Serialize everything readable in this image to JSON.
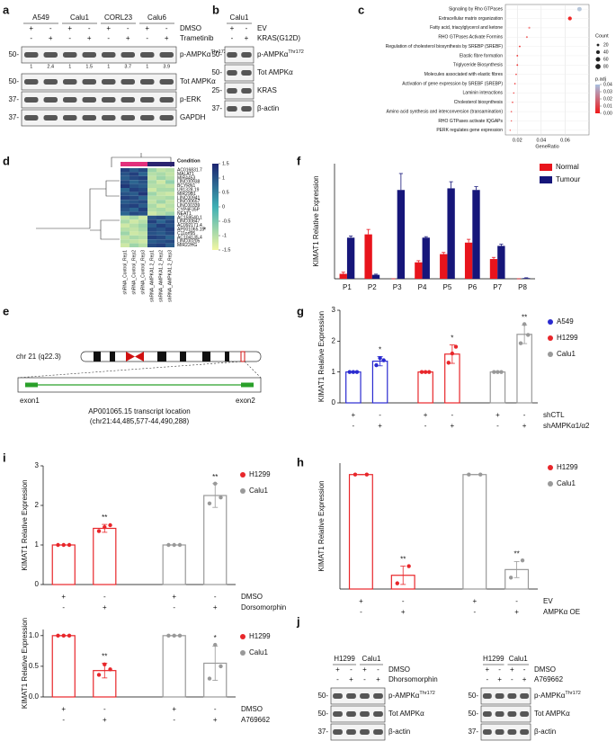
{
  "panel_letters": [
    "a",
    "b",
    "c",
    "d",
    "e",
    "f",
    "g",
    "h",
    "i",
    "j"
  ],
  "blots": {
    "a": {
      "groups": [
        "A549",
        "Calu1",
        "CORL23",
        "Calu6"
      ],
      "treatments": [
        {
          "label": "DMSO",
          "signs": [
            "+",
            "-",
            "+",
            "-",
            "+",
            "-",
            "+",
            "-"
          ]
        },
        {
          "label": "Trametinib",
          "signs": [
            "-",
            "+",
            "-",
            "+",
            "-",
            "+",
            "-",
            "+"
          ]
        }
      ],
      "bands": [
        {
          "label": "p-AMPKα",
          "sup": "Thr172",
          "mw": "50-",
          "quant": [
            1,
            2.4,
            1,
            1.5,
            1,
            3.7,
            1,
            3.9
          ]
        },
        {
          "label": "Tot AMPKα",
          "mw": "50-"
        },
        {
          "label": "p-ERK",
          "mw": "37-"
        },
        {
          "label": "GAPDH",
          "mw": "37-"
        }
      ]
    },
    "b": {
      "groups": [
        "Calu1"
      ],
      "treatments": [
        {
          "label": "EV",
          "signs": [
            "+",
            "-"
          ]
        },
        {
          "label": "KRAS(G12D)",
          "signs": [
            "-",
            "+"
          ]
        }
      ],
      "bands": [
        {
          "label": "p-AMPKα",
          "sup": "Thr172",
          "mw": "50-"
        },
        {
          "label": "Tot AMPKα",
          "mw": "50-"
        },
        {
          "label": "KRAS",
          "mw": "25-"
        },
        {
          "label": "β-actin",
          "mw": "37-"
        }
      ]
    },
    "j_left": {
      "groups": [
        "H1299",
        "Calu1"
      ],
      "treatments": [
        {
          "label": "DMSO",
          "signs": [
            "+",
            "-",
            "+",
            "-"
          ]
        },
        {
          "label": "Dhorsomorphin",
          "signs": [
            "-",
            "+",
            "-",
            "+"
          ]
        }
      ],
      "bands": [
        {
          "label": "p-AMPKα",
          "sup": "Thr172",
          "mw": "50-"
        },
        {
          "label": "Tot AMPKα",
          "mw": "50-"
        },
        {
          "label": "β-actin",
          "mw": "37-"
        }
      ]
    },
    "j_right": {
      "groups": [
        "H1299",
        "Calu1"
      ],
      "treatments": [
        {
          "label": "DMSO",
          "signs": [
            "+",
            "-",
            "+",
            "-"
          ]
        },
        {
          "label": "A769662",
          "signs": [
            "-",
            "+",
            "-",
            "+"
          ]
        }
      ],
      "bands": [
        {
          "label": "p-AMPKα",
          "sup": "Thr172",
          "mw": "50-"
        },
        {
          "label": "Tot AMPKα",
          "mw": "50-"
        },
        {
          "label": "β-actin",
          "mw": "37-"
        }
      ]
    }
  },
  "heatmap": {
    "condition_label": "Condition",
    "condition_colors": [
      "#e2307c",
      "#e2307c",
      "#e2307c",
      "#2b2470",
      "#2b2470",
      "#2b2470"
    ],
    "columns": [
      "shRNA_Control_Rep1",
      "shRNA_Control_Rep2",
      "shRNA_Control_Rep3",
      "shRNA_AMPKA1.2_Rep1",
      "shRNA_AMPKA1.2_Rep2",
      "shRNA_AMPKA1.2_Rep3"
    ],
    "rows": [
      "AC016831.7",
      "MALAT1",
      "MIR4453",
      "LINC00938",
      "BCYRN1",
      "U91328.19",
      "MIR29B1",
      "LINC00941",
      "LINC00657",
      "LINC00339",
      "CYP4F35P",
      "NEAT1",
      "AC159540.1",
      "LINC00847",
      "AC092171.4",
      "AP001065.15",
      "C11orf95",
      "AC104135.4",
      "LINC00205",
      "MIR22HG"
    ],
    "highlight": "*",
    "values": [
      [
        1.2,
        0.9,
        1.1,
        -0.8,
        -1.1,
        -1.0
      ],
      [
        1.0,
        1.2,
        0.8,
        -1.0,
        -0.9,
        -1.1
      ],
      [
        0.9,
        1.1,
        1.2,
        -1.1,
        -0.8,
        -1.0
      ],
      [
        1.1,
        0.8,
        1.0,
        -0.9,
        -1.2,
        -0.7
      ],
      [
        1.3,
        1.0,
        0.9,
        -1.0,
        -1.0,
        -1.1
      ],
      [
        0.8,
        1.2,
        1.1,
        -1.2,
        -0.9,
        -0.9
      ],
      [
        1.0,
        0.9,
        1.3,
        -0.8,
        -1.1,
        -1.2
      ],
      [
        1.2,
        1.1,
        0.8,
        -1.0,
        -1.0,
        -0.9
      ],
      [
        0.9,
        1.0,
        1.1,
        -1.1,
        -0.8,
        -1.1
      ],
      [
        1.1,
        1.2,
        0.9,
        -0.9,
        -1.2,
        -1.0
      ],
      [
        1.0,
        0.8,
        1.2,
        -1.0,
        -0.9,
        -1.1
      ],
      [
        0.8,
        1.1,
        1.0,
        -1.2,
        -1.0,
        -0.8
      ],
      [
        -1.1,
        -0.9,
        -1.2,
        1.0,
        1.1,
        0.9
      ],
      [
        -0.9,
        -1.2,
        -1.0,
        1.2,
        0.8,
        1.1
      ],
      [
        -1.2,
        -1.0,
        -0.8,
        0.9,
        1.2,
        1.0
      ],
      [
        -1.0,
        -1.1,
        -0.9,
        1.1,
        1.0,
        1.2
      ],
      [
        -0.8,
        -1.2,
        -1.1,
        1.0,
        0.9,
        1.1
      ],
      [
        -1.1,
        -0.9,
        -1.0,
        1.2,
        1.1,
        0.8
      ],
      [
        -1.0,
        -1.1,
        -1.2,
        0.9,
        1.0,
        1.1
      ],
      [
        -1.2,
        -0.8,
        -1.0,
        1.1,
        1.2,
        0.9
      ]
    ],
    "colorbar_ticks": [
      1.5,
      1,
      0.5,
      0,
      -0.5,
      -1,
      -1.5
    ]
  },
  "locus": {
    "chromosome": "chr 21 (q22.3)",
    "exon1": "exon1",
    "exon2": "exon2",
    "caption": "AP001065.15 transcript location",
    "coordinates": "(chr21:44,485,577-44,490,288)"
  },
  "chart_data": [
    {
      "type": "dot",
      "categories": [
        "Signaling by Rho GTPases",
        "Extracellular matrix organization",
        "Fatty acid, triacylglycerol and ketone",
        "RHO GTPases Activate Formins",
        "Regulation of cholesterol biosynthesis by SREBP (SREBF)",
        "Elastic fibre formation",
        "Triglyceride Biosynthesis",
        "Molecules associated with elastic fibres",
        "Activation of gene expression by SREBF (SREBP)",
        "Laminin interactions",
        "Cholesterol biosynthesis",
        "Amino acid synthesis and interconversion (transamination)",
        "RHO GTPases activate IQGAPs",
        "PERK regulates gene expression"
      ],
      "values": [
        0.072,
        0.064,
        0.03,
        0.028,
        0.022,
        0.02,
        0.02,
        0.019,
        0.018,
        0.017,
        0.016,
        0.015,
        0.015,
        0.014
      ],
      "counts": [
        60,
        45,
        12,
        10,
        8,
        8,
        8,
        7,
        7,
        6,
        6,
        6,
        5,
        5
      ],
      "colors": [
        "#b8c8dc",
        "#f02828",
        "#f48a8a",
        "#f06a6a",
        "#f03030",
        "#f03a3a",
        "#f03030",
        "#f04040",
        "#f03030",
        "#f04848",
        "#f03030",
        "#f05050",
        "#f05a5a",
        "#f06060"
      ],
      "xlim": [
        0.01,
        0.08
      ],
      "xticks": [
        0.02,
        0.04,
        0.06
      ],
      "xlabel": "GeneRatio",
      "count_title": "Count",
      "count_legend": [
        20,
        40,
        60,
        80
      ],
      "padj_title": "p.adj",
      "padj_ticks": [
        0.04,
        0.03,
        0.02,
        0.01,
        {
          "value": 0,
          "label": "0.00"
        }
      ]
    },
    {
      "type": "bar",
      "ylabel": "KIMAT1 Relative Expression",
      "categories": [
        "P1",
        "P2",
        "P3",
        "P4",
        "P5",
        "P6",
        "P7",
        "P8"
      ],
      "series": [
        {
          "name": "Normal",
          "color": "#e8141c",
          "values": [
            0.015,
            0.135,
            0,
            0.05,
            0.075,
            0.11,
            0.06,
            0
          ],
          "errors": [
            0.005,
            0.015,
            0,
            0.005,
            0.005,
            0.01,
            0.005,
            0
          ]
        },
        {
          "name": "Tumour",
          "color": "#16167a",
          "values": [
            0.125,
            0.012,
            0.27,
            0.125,
            0.275,
            0.27,
            0.1,
            0.002
          ],
          "errors": [
            0.005,
            0.002,
            0.05,
            0.003,
            0.02,
            0.01,
            0.005,
            0.001
          ]
        }
      ],
      "ylim": [
        0,
        0.35
      ]
    },
    {
      "type": "bar",
      "ylabel": "KIMAT1 Relative Expression",
      "values": [
        1,
        1.35,
        1,
        1.58,
        1,
        2.22
      ],
      "errors": [
        0,
        0.15,
        0,
        0.3,
        0,
        0.3
      ],
      "points": [
        [
          1,
          1,
          1
        ],
        [
          1.22,
          1.45,
          1.38
        ],
        [
          1,
          1,
          1
        ],
        [
          1.3,
          1.6,
          1.82
        ],
        [
          1,
          1,
          1
        ],
        [
          1.93,
          2.55,
          2.2
        ]
      ],
      "bar_colors": [
        "#2a2ad0",
        "#2a2ad0",
        "#e8262a",
        "#e8262a",
        "#999999",
        "#999999"
      ],
      "significance": [
        null,
        "*",
        null,
        "*",
        null,
        "**"
      ],
      "legend": [
        {
          "name": "A549",
          "color": "#2a2ad0"
        },
        {
          "name": "H1299",
          "color": "#e8262a"
        },
        {
          "name": "Calu1",
          "color": "#999999"
        }
      ],
      "rows": [
        {
          "label": "shCTL",
          "signs": [
            "+",
            "-",
            "+",
            "-",
            "+",
            "-"
          ]
        },
        {
          "label": "shAMPKα1/α2",
          "signs": [
            "-",
            "+",
            "-",
            "+",
            "-",
            "+"
          ]
        }
      ],
      "ylim": [
        0,
        3
      ],
      "yticks": [
        0,
        1,
        2,
        3
      ]
    },
    {
      "type": "bar",
      "ylabel": "KIMAT1 Relative Expression",
      "values": [
        1,
        0.12,
        1,
        0.17
      ],
      "errors": [
        0,
        0.08,
        0,
        0.07
      ],
      "points": [
        [
          1,
          1
        ],
        [
          0.05,
          0.2
        ],
        [
          1,
          1
        ],
        [
          0.1,
          0.25
        ]
      ],
      "bar_colors": [
        "#e8262a",
        "#e8262a",
        "#999999",
        "#999999"
      ],
      "significance": [
        null,
        "**",
        null,
        "**"
      ],
      "legend": [
        {
          "name": "H1299",
          "color": "#e8262a"
        },
        {
          "name": "Calu1",
          "color": "#999999"
        }
      ],
      "rows": [
        {
          "label": "EV",
          "signs": [
            "+",
            "-",
            "+",
            "-"
          ]
        },
        {
          "label": "AMPKα OE",
          "signs": [
            "-",
            "+",
            "-",
            "+"
          ]
        }
      ],
      "ylim": [
        0,
        1.1
      ]
    },
    {
      "type": "bar",
      "ylabel": "KIMAT1 Relative Expression",
      "values": [
        1,
        1.42,
        1,
        2.25
      ],
      "errors": [
        0,
        0.1,
        0,
        0.3
      ],
      "points": [
        [
          1,
          1,
          1
        ],
        [
          1.35,
          1.45,
          1.5
        ],
        [
          1,
          1,
          1
        ],
        [
          2.05,
          2.55,
          2.2
        ]
      ],
      "bar_colors": [
        "#e8262a",
        "#e8262a",
        "#999999",
        "#999999"
      ],
      "significance": [
        null,
        "**",
        null,
        "**"
      ],
      "legend": [
        {
          "name": "H1299",
          "color": "#e8262a"
        },
        {
          "name": "Calu1",
          "color": "#999999"
        }
      ],
      "rows": [
        {
          "label": "DMSO",
          "signs": [
            "+",
            "-",
            "+",
            "-"
          ]
        },
        {
          "label": "Dorsomorphin",
          "signs": [
            "-",
            "+",
            "-",
            "+"
          ]
        }
      ],
      "ylim": [
        0,
        3
      ],
      "yticks": [
        0,
        1,
        2,
        3
      ]
    },
    {
      "type": "bar",
      "ylabel": "KIMAT1 Relative Expression",
      "values": [
        1,
        0.43,
        1,
        0.55
      ],
      "errors": [
        0,
        0.12,
        0,
        0.28
      ],
      "points": [
        [
          1,
          1,
          1
        ],
        [
          0.36,
          0.53,
          0.45
        ],
        [
          1,
          1,
          1
        ],
        [
          0.3,
          0.85,
          0.5
        ]
      ],
      "bar_colors": [
        "#e8262a",
        "#e8262a",
        "#999999",
        "#999999"
      ],
      "significance": [
        null,
        "**",
        null,
        "*"
      ],
      "legend": [
        {
          "name": "H1299",
          "color": "#e8262a"
        },
        {
          "name": "Calu1",
          "color": "#999999"
        }
      ],
      "rows": [
        {
          "label": "DMSO",
          "signs": [
            "+",
            "-",
            "+",
            "-"
          ]
        },
        {
          "label": "A769662",
          "signs": [
            "-",
            "+",
            "-",
            "+"
          ]
        }
      ],
      "ylim": [
        0,
        1.1
      ],
      "yticks": [
        {
          "value": 0,
          "label": "0.0"
        },
        {
          "value": 0.5,
          "label": "0.5"
        },
        {
          "value": 1,
          "label": "1.0"
        }
      ]
    }
  ]
}
